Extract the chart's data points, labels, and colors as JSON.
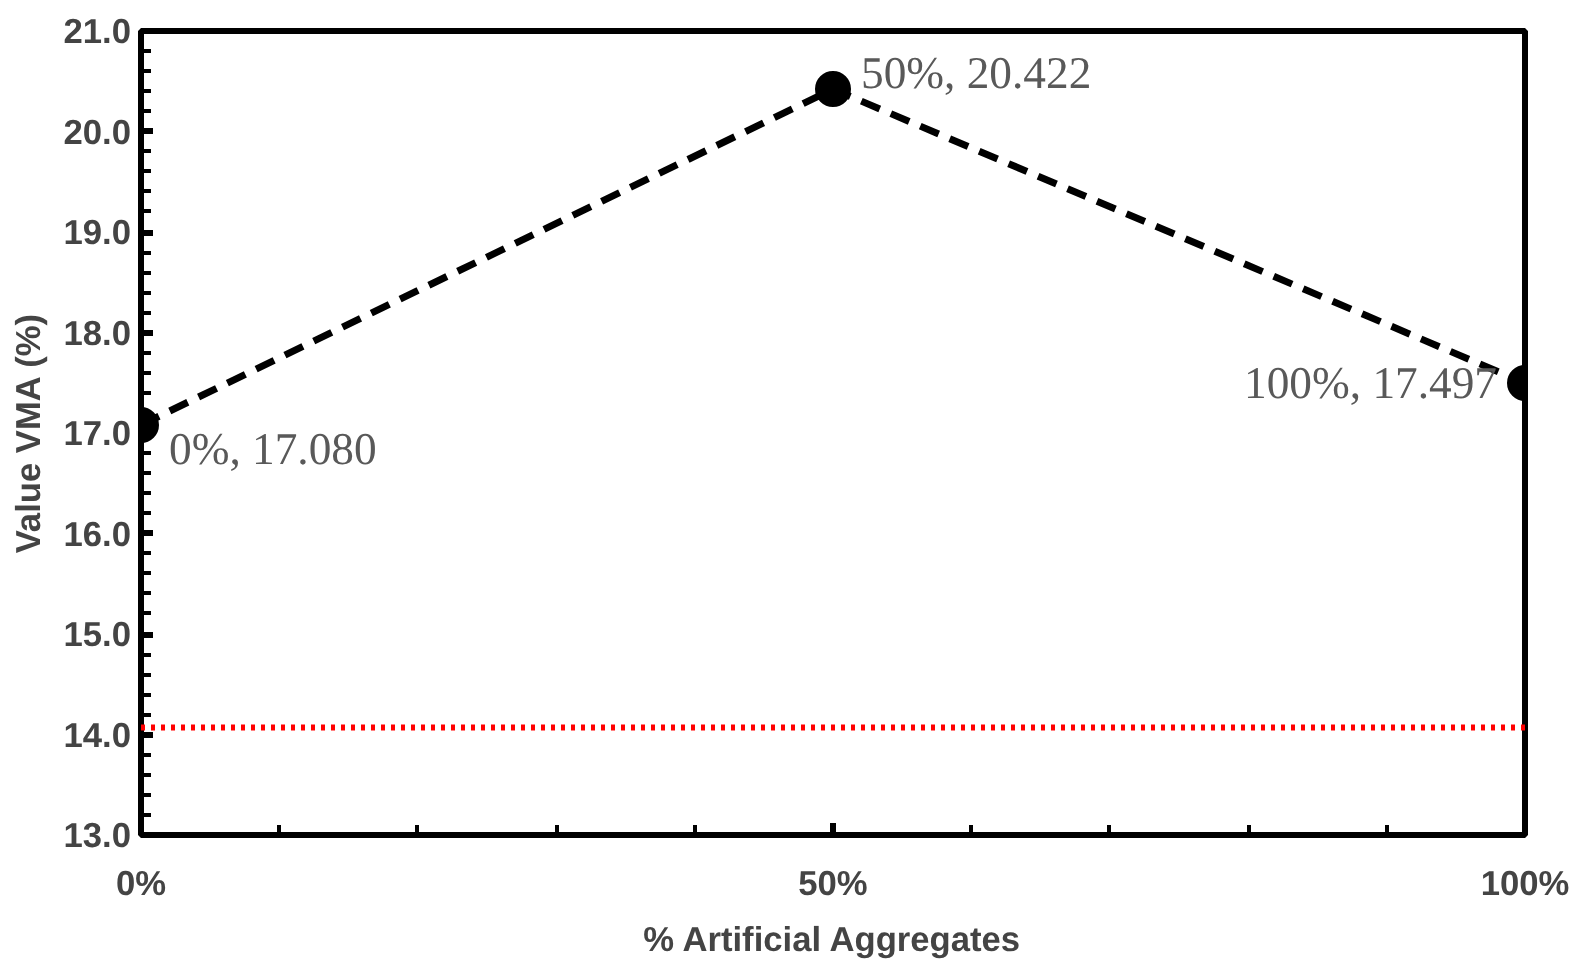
{
  "chart_data": {
    "type": "line",
    "xlabel": "% Artificial Aggregates",
    "ylabel": "Value VMA (%)",
    "x": [
      0,
      50,
      100
    ],
    "series": [
      {
        "color": "#000000",
        "values": [
          17.08,
          20.422,
          17.497
        ]
      }
    ],
    "marker": "circle",
    "line_style": "dashed",
    "xlim": [
      0,
      100
    ],
    "ylim": [
      13,
      21
    ],
    "xticks": [
      {
        "value": 0,
        "label": "0%"
      },
      {
        "value": 50,
        "label": "50%"
      },
      {
        "value": 100,
        "label": "100%"
      }
    ],
    "yticks": [
      {
        "value": 13,
        "label": "13.0"
      },
      {
        "value": 14,
        "label": "14.0"
      },
      {
        "value": 15,
        "label": "15.0"
      },
      {
        "value": 16,
        "label": "16.0"
      },
      {
        "value": 17,
        "label": "17.0"
      },
      {
        "value": 18,
        "label": "18.0"
      },
      {
        "value": 19,
        "label": "19.0"
      },
      {
        "value": 20,
        "label": "20.0"
      },
      {
        "value": 21,
        "label": "21.0"
      }
    ],
    "annotations": [
      {
        "text": "0%, 17.080",
        "x": 0,
        "y": 17.08
      },
      {
        "text": "50%, 20.422",
        "x": 50,
        "y": 20.422
      },
      {
        "text": "100%, 17.497",
        "x": 100,
        "y": 17.497
      }
    ],
    "ref_lines": [
      {
        "axis": "y",
        "value": 14.07,
        "color": "#ff0000",
        "line_style": "dotted"
      }
    ],
    "grid": false
  }
}
